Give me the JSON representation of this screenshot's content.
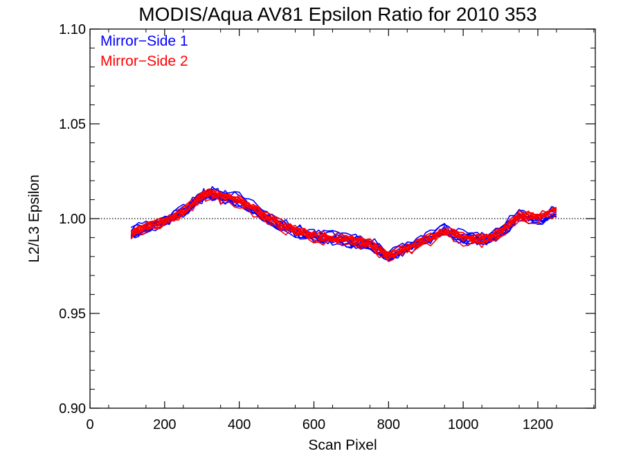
{
  "chart_data": {
    "type": "line",
    "title": "MODIS/Aqua AV81 Epsilon Ratio for 2010 353",
    "xlabel": "Scan Pixel",
    "ylabel": "L2/L3 Epsilon",
    "xlim": [
      0,
      1354
    ],
    "ylim": [
      0.9,
      1.1
    ],
    "x_ticks": [
      "0",
      "200",
      "400",
      "600",
      "800",
      "1000",
      "1200"
    ],
    "y_ticks": [
      "0.90",
      "0.95",
      "1.00",
      "1.05",
      "1.10"
    ],
    "reference_line": {
      "y": 1.0,
      "style": "dotted"
    },
    "legend": {
      "position": "top-left",
      "entries": [
        "Mirror−Side 1",
        "Mirror−Side 2"
      ]
    },
    "colors": {
      "Mirror−Side 1": "#0000ff",
      "Mirror−Side 2": "#ff0000"
    },
    "x": [
      110,
      150,
      200,
      250,
      300,
      320,
      350,
      400,
      450,
      500,
      550,
      600,
      650,
      700,
      750,
      800,
      850,
      900,
      950,
      1000,
      1050,
      1100,
      1150,
      1200,
      1250
    ],
    "series": [
      {
        "name": "Mirror−Side 1",
        "values": [
          0.992,
          0.996,
          0.999,
          1.004,
          1.012,
          1.014,
          1.012,
          1.01,
          1.004,
          0.998,
          0.994,
          0.991,
          0.99,
          0.988,
          0.987,
          0.98,
          0.985,
          0.989,
          0.994,
          0.99,
          0.989,
          0.993,
          1.002,
          1.0,
          1.003
        ]
      },
      {
        "name": "Mirror−Side 2",
        "values": [
          0.991,
          0.995,
          0.998,
          1.003,
          1.011,
          1.013,
          1.011,
          1.009,
          1.003,
          0.997,
          0.993,
          0.99,
          0.989,
          0.988,
          0.986,
          0.98,
          0.984,
          0.988,
          0.993,
          0.989,
          0.988,
          0.992,
          1.001,
          1.0,
          1.004
        ]
      }
    ]
  }
}
